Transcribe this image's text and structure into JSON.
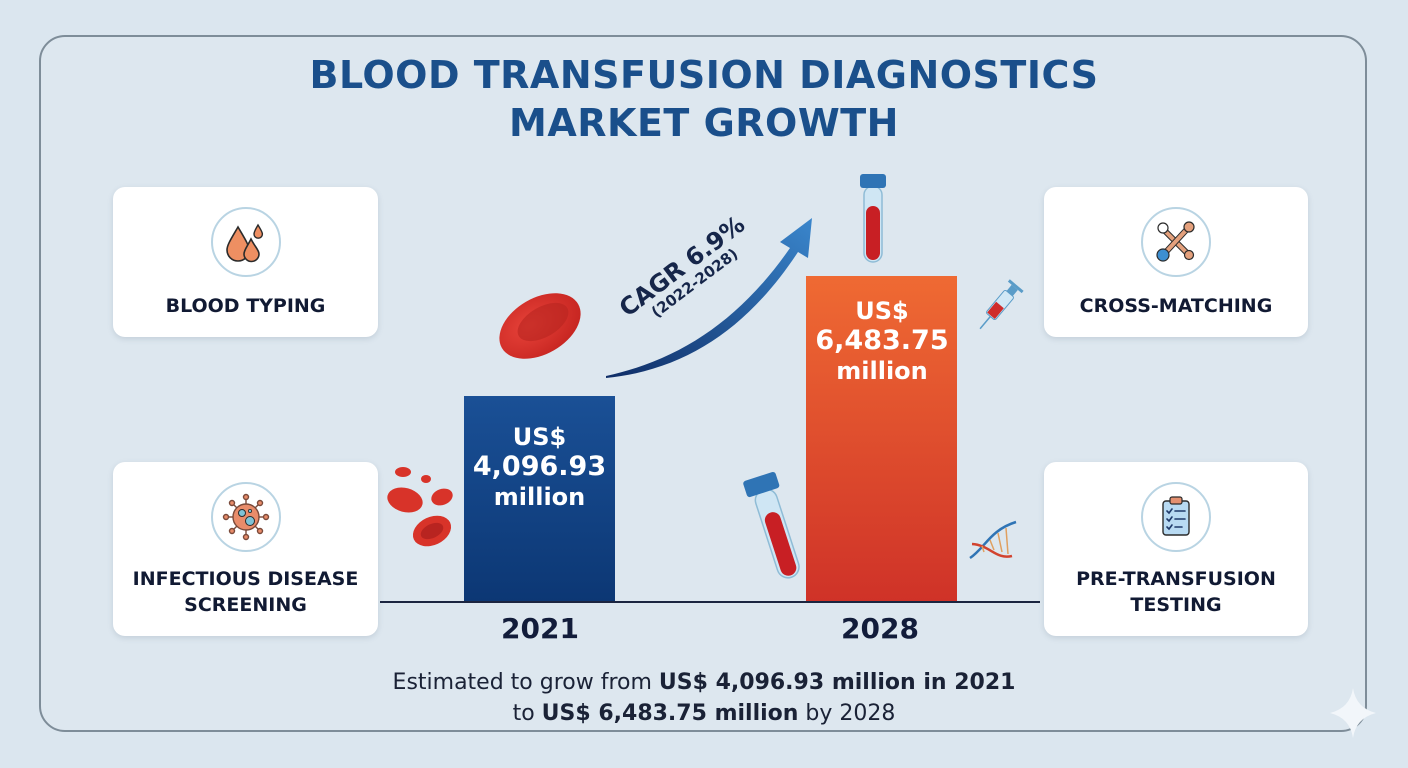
{
  "title": {
    "line1": "BLOOD TRANSFUSION DIAGNOSTICS",
    "line2": "MARKET GROWTH"
  },
  "segments": [
    {
      "label": "BLOOD TYPING",
      "icon": "blood-drops-icon"
    },
    {
      "label_line1": "INFECTIOUS DISEASE",
      "label_line2": "SCREENING",
      "icon": "virus-icon"
    },
    {
      "label": "CROSS-MATCHING",
      "icon": "cross-matching-swabs-icon"
    },
    {
      "label_line1": "PRE-TRANSFUSION",
      "label_line2": "TESTING",
      "icon": "clipboard-checklist-icon"
    }
  ],
  "cagr": {
    "label": "CAGR 6.9%",
    "period": "(2022-2028)"
  },
  "chart_data": {
    "type": "bar",
    "title": "Blood Transfusion Diagnostics Market Growth",
    "categories": [
      "2021",
      "2028"
    ],
    "values": [
      4096.93,
      6483.75
    ],
    "units": "US$ million",
    "bar_labels": [
      {
        "prefix": "US$",
        "value": "4,096.93",
        "suffix": "million"
      },
      {
        "prefix": "US$",
        "value": "6,483.75",
        "suffix": "million"
      }
    ],
    "colors": [
      "#0f3f80",
      "#e4472a"
    ],
    "xlabel": "",
    "ylabel": "",
    "grid": false,
    "annotation": "CAGR 6.9% (2022-2028)"
  },
  "caption": {
    "line1_plain": "Estimated to grow from ",
    "line1_bold": "US$ 4,096.93 million in 2021",
    "line2_plain_a": "to ",
    "line2_bold": "US$ 6,483.75 million",
    "line2_plain_b": " by 2028"
  },
  "colors": {
    "title": "#1a4f8b",
    "bar_2021": "#0f3f80",
    "bar_2028": "#e4472a",
    "background": "#dbe6ef"
  }
}
